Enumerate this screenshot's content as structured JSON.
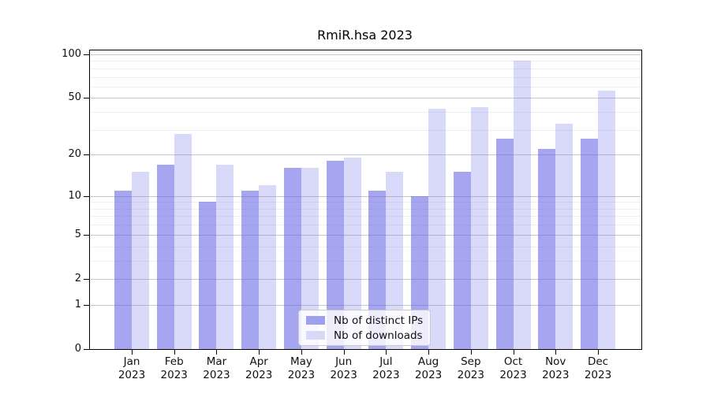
{
  "chart_data": {
    "type": "bar",
    "title": "RmiR.hsa 2023",
    "categories": [
      {
        "month": "Jan",
        "year": "2023"
      },
      {
        "month": "Feb",
        "year": "2023"
      },
      {
        "month": "Mar",
        "year": "2023"
      },
      {
        "month": "Apr",
        "year": "2023"
      },
      {
        "month": "May",
        "year": "2023"
      },
      {
        "month": "Jun",
        "year": "2023"
      },
      {
        "month": "Jul",
        "year": "2023"
      },
      {
        "month": "Aug",
        "year": "2023"
      },
      {
        "month": "Sep",
        "year": "2023"
      },
      {
        "month": "Oct",
        "year": "2023"
      },
      {
        "month": "Nov",
        "year": "2023"
      },
      {
        "month": "Dec",
        "year": "2023"
      }
    ],
    "series": [
      {
        "key": "distinct-ips",
        "name": "Nb of distinct IPs",
        "values": [
          11,
          17,
          9,
          11,
          16,
          18,
          11,
          10,
          15,
          26,
          22,
          26
        ],
        "fill": "rgba(102,102,230,0.58)",
        "legend_fill": "#9f9ff0"
      },
      {
        "key": "downloads",
        "name": "Nb of downloads",
        "values": [
          15,
          28,
          17,
          12,
          16,
          19,
          15,
          42,
          43,
          90,
          33,
          56
        ],
        "fill": "rgba(102,102,230,0.25)",
        "legend_fill": "#d8d8f8"
      }
    ],
    "y_axis": {
      "scale": "log1p",
      "ticks": [
        0,
        1,
        2,
        5,
        10,
        20,
        50,
        100
      ],
      "minor_gridlines": [
        3,
        4,
        6,
        7,
        8,
        9,
        30,
        40,
        60,
        70,
        80,
        90
      ],
      "max": 100
    },
    "legend": {
      "position": "bottom-center"
    },
    "colors": {
      "major_grid": "#c8c8c8",
      "minor_grid": "#efefef",
      "frame": "#000000",
      "text": "#111111"
    }
  }
}
